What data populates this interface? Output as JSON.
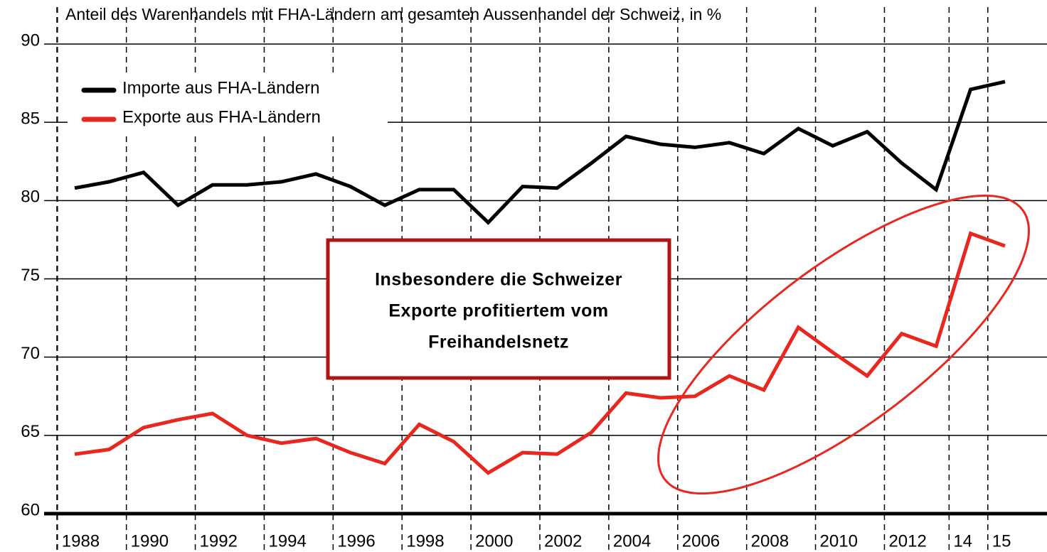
{
  "chart_data": {
    "type": "line",
    "title": "Anteil des Warenhandels mit FHA-Ländern am gesamten Aussenhandel der Schweiz, in %",
    "x": [
      1988,
      1989,
      1990,
      1991,
      1992,
      1993,
      1994,
      1995,
      1996,
      1997,
      1998,
      1999,
      2000,
      2001,
      2002,
      2003,
      2004,
      2005,
      2006,
      2007,
      2008,
      2009,
      2010,
      2011,
      2012,
      2013,
      2014,
      2015
    ],
    "series": [
      {
        "name": "Importe aus FHA-Ländern",
        "color": "#000000",
        "values": [
          80.8,
          81.2,
          81.8,
          79.7,
          81.0,
          81.0,
          81.2,
          81.7,
          80.9,
          79.7,
          80.7,
          80.7,
          78.6,
          80.9,
          80.8,
          82.4,
          84.1,
          83.6,
          83.4,
          83.7,
          83.0,
          84.6,
          83.5,
          84.4,
          82.4,
          80.7,
          87.1,
          87.6
        ]
      },
      {
        "name": "Exporte aus FHA-Ländern",
        "color": "#e8281e",
        "values": [
          63.8,
          64.1,
          65.5,
          66.0,
          66.4,
          65.0,
          64.5,
          64.8,
          63.9,
          63.2,
          65.7,
          64.6,
          62.6,
          63.9,
          63.8,
          65.2,
          67.7,
          67.4,
          67.5,
          68.8,
          67.9,
          71.9,
          70.3,
          68.8,
          71.5,
          70.7,
          77.9,
          77.1
        ]
      }
    ],
    "xlim": [
      1988,
      2015
    ],
    "xticks": [
      1988,
      1990,
      1992,
      1994,
      1996,
      1998,
      2000,
      2002,
      2004,
      2006,
      2008,
      2010,
      2012,
      {
        "value": 2014,
        "label": "14"
      },
      {
        "value": 2015,
        "label": "15"
      }
    ],
    "ylim": [
      60,
      90
    ],
    "yticks": [
      60,
      65,
      70,
      75,
      80,
      85,
      90
    ],
    "grid": true,
    "legend": "upper left",
    "annotation": [
      "Insbesondere die Schweizer",
      "Exporte profitiertem vom",
      "Freihandelsnetz"
    ]
  }
}
